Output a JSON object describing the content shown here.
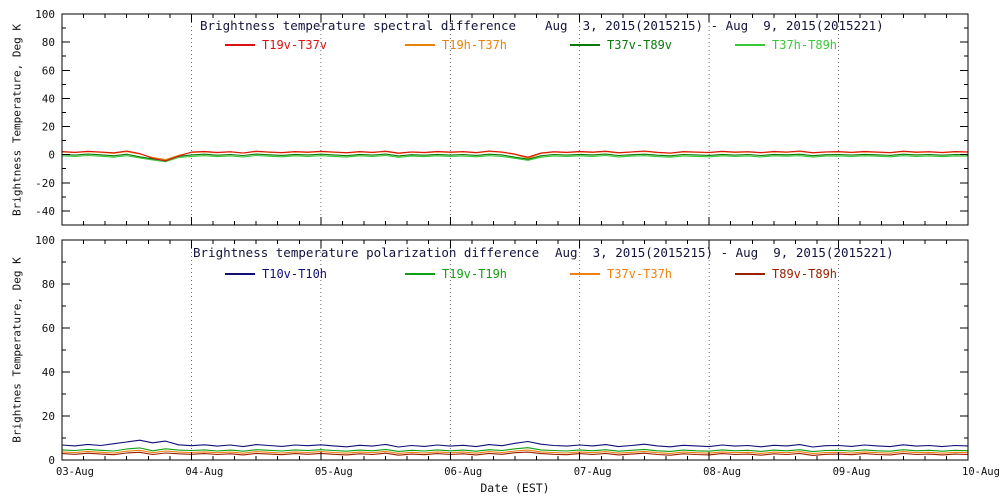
{
  "figure": {
    "bg": "#ffffff",
    "xlabel": "Date (EST)",
    "x_tick_labels": [
      "03-Aug",
      "04-Aug",
      "05-Aug",
      "06-Aug",
      "07-Aug",
      "08-Aug",
      "09-Aug",
      "10-Aug"
    ],
    "x_range_days": [
      0,
      7
    ],
    "axis_color": "#000000",
    "grid_style": "dotted-vertical-at-day-boundaries"
  },
  "chart_data": [
    {
      "type": "line",
      "title": "Brightness temperature spectral difference",
      "date_range": "Aug  3, 2015(2015215) - Aug  9, 2015(2015221)",
      "ylabel": "Brightness Temperature, Deg K",
      "ylim": [
        -50,
        100
      ],
      "yticks": [
        -40,
        -20,
        0,
        20,
        40,
        60,
        80,
        100
      ],
      "x_note": "values sampled evenly from 03-Aug 00:00 to 10-Aug 00:00 EST",
      "series": [
        {
          "name": "T19v-T37v",
          "color": "#dd1111",
          "values": [
            2.2,
            1.7,
            2.4,
            1.9,
            1.3,
            2.6,
            0.8,
            -2.5,
            -4.5,
            -1.0,
            1.8,
            2.3,
            1.6,
            2.1,
            1.2,
            2.5,
            1.9,
            1.5,
            2.2,
            1.8,
            2.4,
            1.9,
            1.4,
            2.2,
            1.7,
            2.5,
            1.1,
            2.0,
            1.6,
            2.3,
            1.8,
            2.2,
            1.5,
            2.6,
            1.9,
            0.4,
            -1.8,
            1.2,
            2.1,
            1.7,
            2.3,
            1.8,
            2.5,
            1.4,
            2.0,
            2.6,
            1.7,
            1.2,
            2.2,
            1.9,
            1.6,
            2.4,
            1.8,
            2.1,
            1.5,
            2.3,
            1.9,
            2.6,
            1.4,
            2.0,
            2.2,
            1.7,
            2.3,
            1.9,
            1.5,
            2.5,
            1.8,
            2.1,
            1.6,
            2.2,
            2.0
          ]
        },
        {
          "name": "T19h-T37h",
          "color": "#e8820a",
          "values": [
            1.9,
            1.5,
            2.1,
            1.7,
            1.0,
            2.2,
            0.5,
            -2.0,
            -3.5,
            -0.5,
            1.6,
            2.0,
            1.4,
            1.9,
            1.1,
            2.2,
            1.7,
            1.3,
            2.0,
            1.6,
            2.1,
            1.7,
            1.2,
            2.0,
            1.5,
            2.2,
            0.9,
            1.8,
            1.4,
            2.0,
            1.6,
            2.0,
            1.3,
            2.3,
            1.7,
            0.1,
            -2.5,
            0.8,
            1.8,
            1.5,
            2.0,
            1.6,
            2.2,
            1.2,
            1.8,
            2.3,
            1.5,
            1.0,
            1.9,
            1.7,
            1.4,
            2.1,
            1.6,
            1.9,
            1.3,
            2.0,
            1.7,
            2.3,
            1.2,
            1.8,
            1.9,
            1.5,
            2.0,
            1.7,
            1.3,
            2.2,
            1.6,
            1.9,
            1.4,
            2.0,
            1.8
          ]
        },
        {
          "name": "T37v-T89v",
          "color": "#0a7a0a",
          "values": [
            0.2,
            -0.3,
            0.4,
            -0.1,
            -0.8,
            0.3,
            -1.5,
            -3.0,
            -4.2,
            -1.2,
            -0.2,
            0.3,
            -0.4,
            0.1,
            -0.6,
            0.4,
            -0.1,
            -0.5,
            0.2,
            -0.2,
            0.3,
            -0.2,
            -0.7,
            0.2,
            -0.3,
            0.4,
            -0.9,
            0.0,
            -0.4,
            0.2,
            -0.3,
            0.1,
            -0.5,
            0.3,
            -0.2,
            -1.8,
            -3.2,
            -0.8,
            0.1,
            -0.3,
            0.2,
            -0.2,
            0.4,
            -0.6,
            0.0,
            0.3,
            -0.4,
            -0.8,
            0.1,
            -0.2,
            -0.5,
            0.2,
            -0.3,
            0.1,
            -0.6,
            0.2,
            -0.1,
            0.3,
            -0.7,
            0.0,
            0.1,
            -0.3,
            0.2,
            -0.1,
            -0.5,
            0.3,
            -0.2,
            0.1,
            -0.4,
            0.1,
            0.0
          ]
        },
        {
          "name": "T37h-T89h",
          "color": "#37c837",
          "values": [
            -0.8,
            -1.3,
            -0.6,
            -1.1,
            -1.8,
            -0.7,
            -2.3,
            -3.8,
            -5.0,
            -2.0,
            -1.2,
            -0.7,
            -1.4,
            -0.9,
            -1.6,
            -0.6,
            -1.1,
            -1.5,
            -0.8,
            -1.2,
            -0.7,
            -1.2,
            -1.7,
            -0.8,
            -1.3,
            -0.6,
            -1.9,
            -1.0,
            -1.4,
            -0.8,
            -1.3,
            -0.9,
            -1.5,
            -0.7,
            -1.2,
            -2.6,
            -4.0,
            -1.8,
            -0.9,
            -1.3,
            -0.8,
            -1.2,
            -0.6,
            -1.6,
            -1.0,
            -0.7,
            -1.4,
            -1.8,
            -0.9,
            -1.2,
            -1.5,
            -0.8,
            -1.3,
            -0.9,
            -1.6,
            -0.8,
            -1.1,
            -0.7,
            -1.7,
            -1.0,
            -0.9,
            -1.3,
            -0.8,
            -1.1,
            -1.5,
            -0.7,
            -1.2,
            -0.9,
            -1.4,
            -0.9,
            -1.0
          ]
        }
      ]
    },
    {
      "type": "line",
      "title": "Brightness temperature polarization difference",
      "date_range": "Aug  3, 2015(2015215) - Aug  9, 2015(2015221)",
      "ylabel": "Brightnes Temperature, Deg K",
      "ylim": [
        0,
        100
      ],
      "yticks": [
        0,
        20,
        40,
        60,
        80,
        100
      ],
      "x_note": "values sampled evenly from 03-Aug 00:00 to 10-Aug 00:00 EST",
      "series": [
        {
          "name": "T10v-T10h",
          "color": "#101078",
          "values": [
            6.8,
            6.4,
            7.1,
            6.6,
            7.4,
            8.2,
            9.0,
            7.8,
            8.6,
            6.9,
            6.5,
            6.9,
            6.3,
            6.8,
            6.1,
            7.0,
            6.6,
            6.2,
            6.8,
            6.5,
            6.9,
            6.4,
            6.0,
            6.7,
            6.3,
            7.1,
            5.9,
            6.6,
            6.2,
            6.8,
            6.3,
            6.7,
            6.1,
            7.0,
            6.5,
            7.6,
            8.4,
            7.2,
            6.6,
            6.3,
            6.8,
            6.4,
            7.0,
            6.1,
            6.6,
            7.2,
            6.4,
            6.0,
            6.7,
            6.4,
            6.1,
            6.8,
            6.3,
            6.6,
            6.0,
            6.7,
            6.4,
            7.0,
            5.9,
            6.5,
            6.6,
            6.2,
            6.8,
            6.4,
            6.1,
            6.9,
            6.3,
            6.6,
            6.1,
            6.6,
            6.4
          ]
        },
        {
          "name": "T19v-T19h",
          "color": "#11a011",
          "values": [
            4.6,
            4.3,
            4.8,
            4.4,
            4.1,
            5.0,
            5.5,
            4.2,
            5.1,
            4.5,
            4.3,
            4.6,
            4.1,
            4.5,
            4.0,
            4.7,
            4.4,
            4.1,
            4.6,
            4.3,
            4.7,
            4.3,
            4.0,
            4.5,
            4.2,
            4.8,
            3.9,
            4.4,
            4.1,
            4.6,
            4.2,
            4.5,
            4.0,
            4.7,
            4.3,
            5.1,
            5.6,
            4.6,
            4.3,
            4.1,
            4.6,
            4.2,
            4.7,
            4.0,
            4.4,
            4.8,
            4.2,
            3.9,
            4.5,
            4.2,
            4.0,
            4.6,
            4.2,
            4.4,
            3.9,
            4.5,
            4.2,
            4.7,
            3.8,
            4.3,
            4.4,
            4.1,
            4.6,
            4.2,
            4.0,
            4.7,
            4.2,
            4.4,
            4.0,
            4.4,
            4.2
          ]
        },
        {
          "name": "T37v-T37h",
          "color": "#f08010",
          "values": [
            3.7,
            3.4,
            3.9,
            3.5,
            3.2,
            4.0,
            4.4,
            3.3,
            4.1,
            3.6,
            3.4,
            3.7,
            3.3,
            3.6,
            3.1,
            3.8,
            3.5,
            3.2,
            3.7,
            3.4,
            3.8,
            3.4,
            3.1,
            3.6,
            3.3,
            3.9,
            3.0,
            3.5,
            3.2,
            3.7,
            3.3,
            3.6,
            3.1,
            3.8,
            3.4,
            4.1,
            4.5,
            3.7,
            3.4,
            3.2,
            3.7,
            3.3,
            3.8,
            3.1,
            3.5,
            3.9,
            3.3,
            3.0,
            3.6,
            3.3,
            3.1,
            3.7,
            3.3,
            3.5,
            3.0,
            3.6,
            3.3,
            3.8,
            2.9,
            3.4,
            3.5,
            3.2,
            3.7,
            3.3,
            3.1,
            3.8,
            3.3,
            3.5,
            3.1,
            3.5,
            3.3
          ]
        },
        {
          "name": "T89v-T89h",
          "color": "#992200",
          "values": [
            2.9,
            2.6,
            3.1,
            2.7,
            2.4,
            3.2,
            3.5,
            2.5,
            3.2,
            2.8,
            2.6,
            2.9,
            2.5,
            2.8,
            2.3,
            3.0,
            2.7,
            2.4,
            2.9,
            2.6,
            3.0,
            2.6,
            2.3,
            2.8,
            2.5,
            3.1,
            2.2,
            2.7,
            2.4,
            2.9,
            2.5,
            2.8,
            2.3,
            3.0,
            2.6,
            3.3,
            3.6,
            2.9,
            2.6,
            2.4,
            2.9,
            2.5,
            3.0,
            2.3,
            2.7,
            3.1,
            2.5,
            2.2,
            2.8,
            2.5,
            2.3,
            2.9,
            2.5,
            2.7,
            2.2,
            2.8,
            2.5,
            3.0,
            2.1,
            2.6,
            2.7,
            2.4,
            2.9,
            2.5,
            2.3,
            3.0,
            2.5,
            2.7,
            2.3,
            2.7,
            2.5
          ]
        }
      ]
    }
  ]
}
